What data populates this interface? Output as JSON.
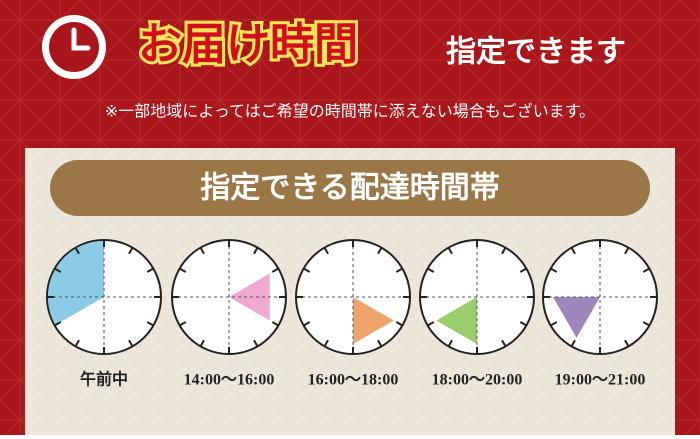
{
  "header": {
    "title": "お届け時間",
    "subtitle": "指定できます",
    "note": "※一部地域によってはご希望の時間帯に添えない場合もございます。"
  },
  "panel": {
    "heading": "指定できる配達時間帯",
    "slots": [
      {
        "label": "午前中"
      },
      {
        "label": "14:00〜16:00"
      },
      {
        "label": "16:00〜18:00"
      },
      {
        "label": "18:00〜20:00"
      },
      {
        "label": "19:00〜21:00"
      }
    ]
  }
}
